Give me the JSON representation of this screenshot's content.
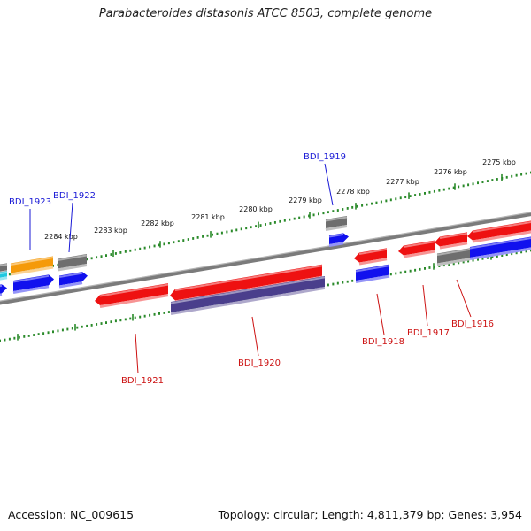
{
  "header": {
    "title": "Parabacteroides distasonis ATCC 8503, complete genome"
  },
  "footer": {
    "accession": "Accession: NC_009615",
    "summary": "Topology: circular; Length: 4,811,379 bp; Genes: 3,954"
  },
  "colors": {
    "backbone": "#808080",
    "ticks": "#2a8a2a",
    "red": "#ee1111",
    "blue": "#1111ee",
    "orange": "#f59a0a",
    "gray": "#6e6e6e",
    "navy": "#4a3e8c",
    "cyan": "#1ec8e0",
    "label_blue": "#1a1ad6",
    "label_red": "#cc1111"
  },
  "kbp_labels": [
    "2275 kbp",
    "2276 kbp",
    "2277 kbp",
    "2278 kbp",
    "2279 kbp",
    "2280 kbp",
    "2281 kbp",
    "2282 kbp",
    "2283 kbp",
    "2284 kbp"
  ],
  "gene_labels": [
    {
      "id": "bdi1923",
      "text": "BDI_1923",
      "color": "blue"
    },
    {
      "id": "bdi1922",
      "text": "BDI_1922",
      "color": "blue"
    },
    {
      "id": "bdi1919",
      "text": "BDI_1919",
      "color": "blue"
    },
    {
      "id": "bdi1921",
      "text": "BDI_1921",
      "color": "red"
    },
    {
      "id": "bdi1920",
      "text": "BDI_1920",
      "color": "red"
    },
    {
      "id": "bdi1918",
      "text": "BDI_1918",
      "color": "red"
    },
    {
      "id": "bdi1917",
      "text": "BDI_1917",
      "color": "red"
    },
    {
      "id": "bdi1916",
      "text": "BDI_1916",
      "color": "red"
    }
  ]
}
